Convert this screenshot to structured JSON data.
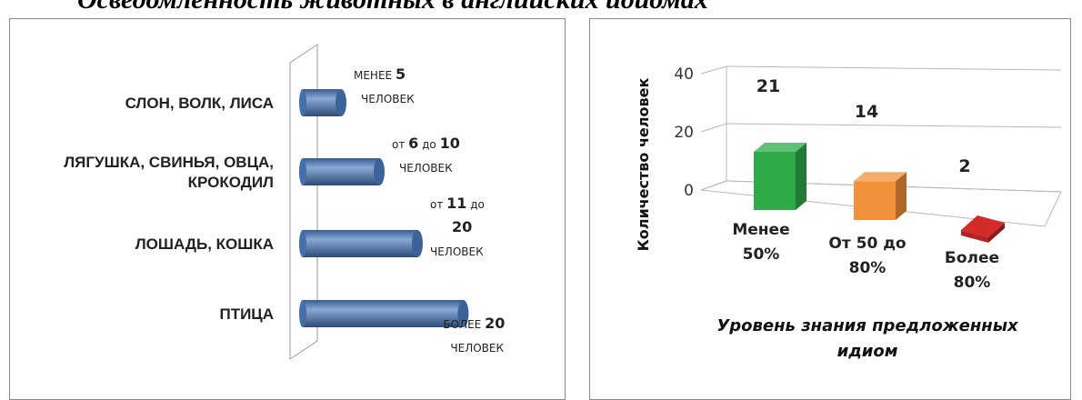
{
  "page_title": "Осведомленность животных в английских идиомах",
  "chart_data": [
    {
      "type": "bar",
      "orientation": "horizontal",
      "categories": [
        "СЛОН, ВОЛК, ЛИСА",
        "ЛЯГУШКА, СВИНЬЯ, ОВЦА, КРОКОДИЛ",
        "ЛОШАДЬ, КОШКА",
        "ПТИЦА"
      ],
      "category_lines": [
        [
          "СЛОН, ВОЛК, ЛИСА"
        ],
        [
          "ЛЯГУШКА, СВИНЬЯ, ОВЦА,",
          "КРОКОДИЛ"
        ],
        [
          "ЛОШАДЬ, КОШКА"
        ],
        [
          "ПТИЦА"
        ]
      ],
      "values": [
        5,
        10,
        15,
        21
      ],
      "data_labels": [
        {
          "lines": [
            [
              {
                "t": "МЕНЕЕ ",
                "b": false
              },
              {
                "t": "5",
                "b": true
              }
            ],
            [
              {
                "t": "ЧЕЛОВЕК",
                "b": false
              }
            ]
          ]
        },
        {
          "lines": [
            [
              {
                "t": "от ",
                "b": false
              },
              {
                "t": "6",
                "b": true
              },
              {
                "t": " до ",
                "b": false
              },
              {
                "t": "10",
                "b": true
              }
            ],
            [
              {
                "t": "ЧЕЛОВЕК",
                "b": false
              }
            ]
          ]
        },
        {
          "lines": [
            [
              {
                "t": "от ",
                "b": false
              },
              {
                "t": "11",
                "b": true
              },
              {
                "t": " до",
                "b": false
              }
            ],
            [
              {
                "t": "20",
                "b": true
              }
            ],
            [
              {
                "t": "ЧЕЛОВЕК",
                "b": false
              }
            ]
          ]
        },
        {
          "lines": [
            [
              {
                "t": "БОЛЕЕ ",
                "b": false
              },
              {
                "t": "20",
                "b": true
              }
            ],
            [
              {
                "t": "ЧЕЛОВЕК",
                "b": false
              }
            ]
          ]
        }
      ],
      "bar_color": "#4a7bbf",
      "grid": false,
      "legend": "none"
    },
    {
      "type": "bar",
      "style": "3d",
      "categories": [
        "Менее 50%",
        "От 50 до 80%",
        "Более 80%"
      ],
      "category_lines": [
        [
          "Менее",
          "50%"
        ],
        [
          "От 50 до",
          "80%"
        ],
        [
          "Более",
          "80%"
        ]
      ],
      "values": [
        21,
        14,
        2
      ],
      "colors": [
        "#2eaa4a",
        "#f2913a",
        "#d42a2a"
      ],
      "ylabel": "Количество   человек",
      "xlabel": "Уровень знания предложенных идиом",
      "xlabel_lines": [
        "Уровень знания предложенных",
        "идиом"
      ],
      "yticks": [
        0,
        20,
        40
      ],
      "ylim": [
        0,
        40
      ],
      "grid": true,
      "legend": "none"
    }
  ]
}
